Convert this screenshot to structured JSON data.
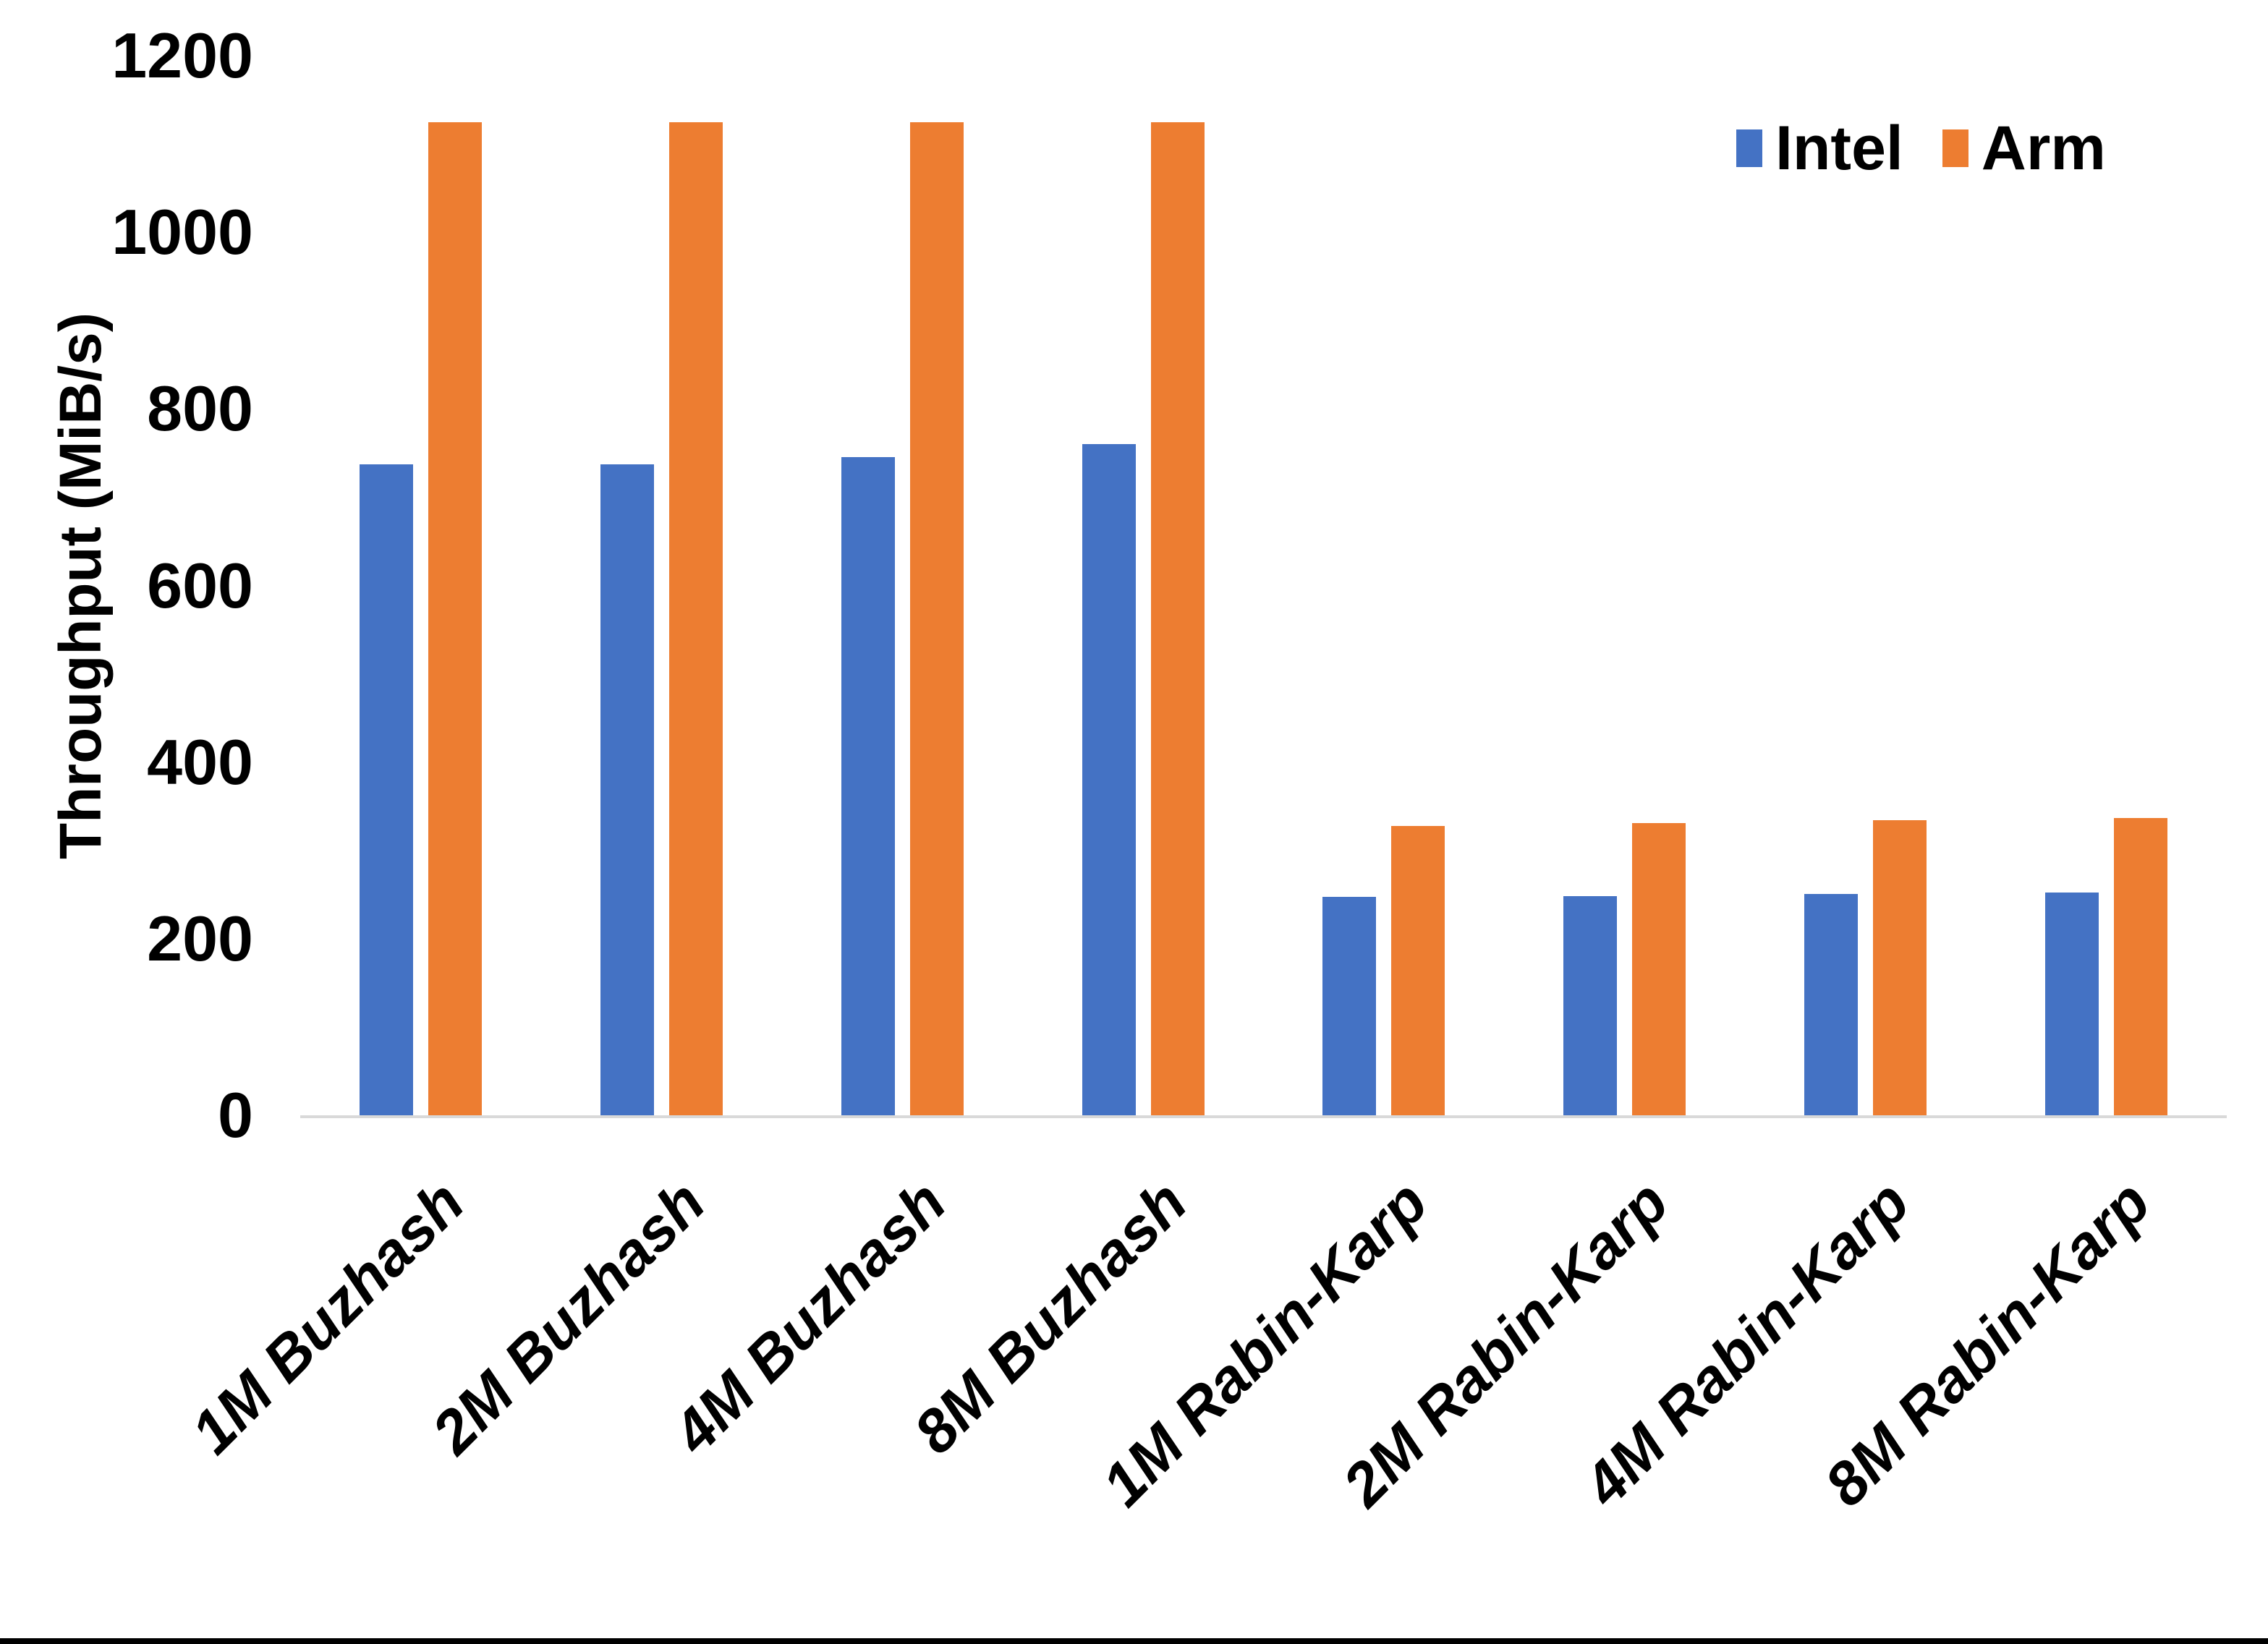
{
  "chart_data": {
    "type": "bar",
    "title": "",
    "categories": [
      "1M Buzhash",
      "2M Buzhash",
      "4M Buzhash",
      "8M Buzhash",
      "1M Rabin-Karp",
      "2M Rabin-Karp",
      "4M Rabin-Karp",
      "8M Rabin-Karp"
    ],
    "series": [
      {
        "name": "Intel",
        "color": "#4472C4",
        "values": [
          737,
          737,
          745,
          760,
          247,
          248,
          251,
          252
        ]
      },
      {
        "name": "Arm",
        "color": "#ED7D31",
        "values": [
          1125,
          1125,
          1125,
          1125,
          328,
          331,
          334,
          337
        ]
      }
    ],
    "xlabel": "",
    "ylabel": "Throughput (MiB/s)",
    "ylim": [
      0,
      1200
    ],
    "yticks": [
      0,
      200,
      400,
      600,
      800,
      1000,
      1200
    ],
    "grid": false,
    "legend_position": "top-right"
  },
  "legend": {
    "items": [
      {
        "label": "Intel",
        "color": "#4472C4"
      },
      {
        "label": "Arm",
        "color": "#ED7D31"
      }
    ]
  },
  "colors": {
    "background": "#FFFFFF",
    "axis_line": "#D9D9D9",
    "text": "#000000",
    "bottom_strip": "#000000"
  }
}
